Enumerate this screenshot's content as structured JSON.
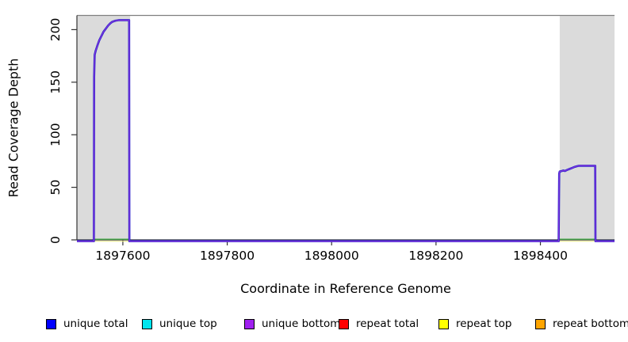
{
  "chart_data": {
    "type": "line",
    "title": "",
    "xlabel": "Coordinate in Reference Genome",
    "ylabel": "Read Coverage Depth",
    "xlim": [
      1897512,
      1898542
    ],
    "ylim": [
      0,
      213.5
    ],
    "xticks": [
      1897600,
      1897800,
      1898000,
      1898200,
      1898400
    ],
    "yticks": [
      0,
      50,
      100,
      150,
      200
    ],
    "grid": false,
    "repeat_regions": [
      {
        "start": 1897512,
        "end": 1897614
      },
      {
        "start": 1898437,
        "end": 1898542
      }
    ],
    "series": [
      {
        "name": "unique total / unique bottom coverage profile",
        "colors": [
          "#2222cc",
          "#8833dd"
        ],
        "points": [
          [
            1897512,
            0
          ],
          [
            1897544.5,
            0
          ],
          [
            1897545,
            155
          ],
          [
            1897546,
            176
          ],
          [
            1897548,
            180
          ],
          [
            1897550,
            183
          ],
          [
            1897552,
            186
          ],
          [
            1897555,
            190
          ],
          [
            1897558,
            193
          ],
          [
            1897561,
            196
          ],
          [
            1897563,
            198
          ],
          [
            1897566,
            200
          ],
          [
            1897569,
            202
          ],
          [
            1897572,
            204
          ],
          [
            1897576,
            206
          ],
          [
            1897580,
            207.5
          ],
          [
            1897586,
            208.5
          ],
          [
            1897592,
            209
          ],
          [
            1897612,
            209
          ],
          [
            1897612.5,
            0
          ],
          [
            1898435,
            0
          ],
          [
            1898436,
            63
          ],
          [
            1898437,
            65
          ],
          [
            1898441,
            65.5
          ],
          [
            1898444,
            66
          ],
          [
            1898447,
            65.5
          ],
          [
            1898451,
            66.5
          ],
          [
            1898456,
            67.5
          ],
          [
            1898461,
            68.5
          ],
          [
            1898466,
            69.5
          ],
          [
            1898470,
            70
          ],
          [
            1898474,
            70.5
          ],
          [
            1898505,
            70.5
          ],
          [
            1898505.5,
            0
          ],
          [
            1898542,
            0
          ]
        ]
      }
    ],
    "zero_line_segments": [
      {
        "name": "green zero segment",
        "color": "#44aa44",
        "ranges": [
          [
            1897545,
            1897612
          ],
          [
            1898436,
            1898505
          ]
        ]
      },
      {
        "name": "pale yellow zero segment",
        "color": "#e8e88a",
        "ranges": [
          [
            1897545,
            1897612
          ],
          [
            1898436,
            1898505
          ]
        ]
      }
    ],
    "region_fill_color": "#dbdbdb",
    "top_border_color": "#7f7f7f",
    "axis_color": "#333333"
  },
  "legend": {
    "items": [
      {
        "label": "unique total",
        "color": "#0000ff"
      },
      {
        "label": "unique top",
        "color": "#00e5ee"
      },
      {
        "label": "unique bottom",
        "color": "#a020f0"
      },
      {
        "label": "repeat total",
        "color": "#ff0000"
      },
      {
        "label": "repeat top",
        "color": "#ffff00"
      },
      {
        "label": "repeat bottom",
        "color": "#ffa500"
      }
    ]
  }
}
